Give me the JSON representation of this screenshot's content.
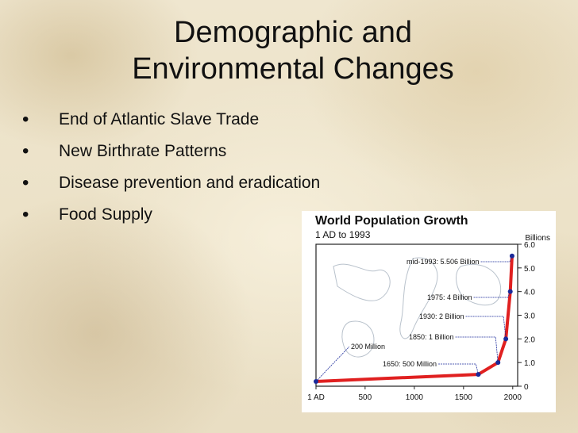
{
  "slide": {
    "title_line1": "Demographic and",
    "title_line2": "Environmental Changes",
    "bullets": [
      "End of Atlantic Slave Trade",
      "New Birthrate Patterns",
      "Disease prevention and eradication",
      "Food Supply"
    ],
    "bullet_symbol": "•"
  },
  "chart_data": {
    "type": "line",
    "title": "World Population Growth",
    "subtitle": "1 AD to 1993",
    "ylabel": "Billions",
    "xlim": [
      1,
      2050
    ],
    "ylim": [
      0,
      6.0
    ],
    "x_ticks": [
      "1 AD",
      "500",
      "1000",
      "1500",
      "2000"
    ],
    "y_ticks": [
      "0",
      "1.0",
      "2.0",
      "3.0",
      "4.0",
      "5.0",
      "6.0"
    ],
    "grid": false,
    "line_color": "#e02020",
    "point_color": "#1a2a9a",
    "series": [
      {
        "x": [
          1,
          1650,
          1850,
          1930,
          1975,
          1993
        ],
        "y": [
          0.2,
          0.5,
          1.0,
          2.0,
          4.0,
          5.506
        ]
      }
    ],
    "annotations": [
      "200 Million",
      "1650: 500 Million",
      "1850: 1 Billion",
      "1930: 2 Billion",
      "1975: 4 Billion",
      "mid-1993: 5.506 Billion"
    ]
  }
}
